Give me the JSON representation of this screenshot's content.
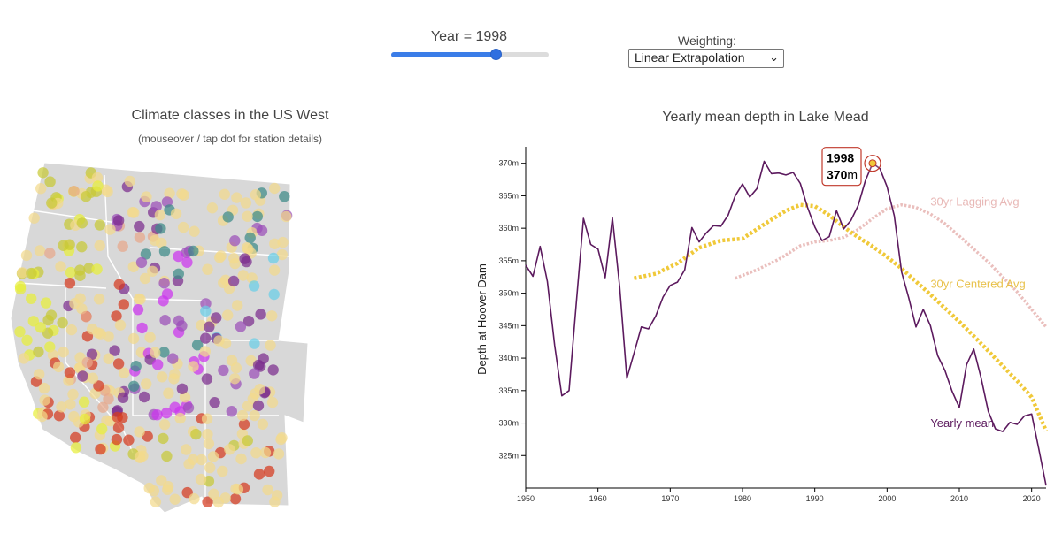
{
  "controls": {
    "year_label": "Year = 1998",
    "year_slider": {
      "min": 1950,
      "max": 2022,
      "value": 1998
    },
    "weighting_label": "Weighting:",
    "weighting_selected": "Linear Extrapolation",
    "chevron_icon": "chevron-down-icon"
  },
  "map": {
    "title": "Climate classes in the US West",
    "subtitle": "(mouseover / tap dot for station details)",
    "colors": {
      "land": "#d8d8d8",
      "border": "#ffffff",
      "classes": [
        "#c7c936",
        "#f3d98c",
        "#9b4fb8",
        "#7b2d8e",
        "#d63a1f",
        "#e8a88a",
        "#e8ee3a",
        "#cc33ee",
        "#3d8a88",
        "#6acfe8",
        "#f2c8c0"
      ]
    }
  },
  "chart_data": {
    "type": "line",
    "title": "Yearly mean depth in Lake Mead",
    "ylabel": "Depth at Hoover Dam",
    "xlabel": "",
    "xlim": [
      1950,
      2022
    ],
    "ylim": [
      320,
      372
    ],
    "x_ticks": [
      "1950",
      "1960",
      "1970",
      "1980",
      "1990",
      "2000",
      "2010",
      "2020"
    ],
    "y_ticks": [
      "325m",
      "330m",
      "335m",
      "340m",
      "345m",
      "350m",
      "355m",
      "360m",
      "365m",
      "370m"
    ],
    "grid": false,
    "series": [
      {
        "name": "Yearly mean",
        "color": "#5c1a5e",
        "x": [
          1950,
          1951,
          1952,
          1953,
          1954,
          1955,
          1956,
          1957,
          1958,
          1959,
          1960,
          1961,
          1962,
          1963,
          1964,
          1965,
          1966,
          1967,
          1968,
          1969,
          1970,
          1971,
          1972,
          1973,
          1974,
          1975,
          1976,
          1977,
          1978,
          1979,
          1980,
          1981,
          1982,
          1983,
          1984,
          1985,
          1986,
          1987,
          1988,
          1989,
          1990,
          1991,
          1992,
          1993,
          1994,
          1995,
          1996,
          1997,
          1998,
          1999,
          2000,
          2001,
          2002,
          2003,
          2004,
          2005,
          2006,
          2007,
          2008,
          2009,
          2010,
          2011,
          2012,
          2013,
          2014,
          2015,
          2016,
          2017,
          2018,
          2019,
          2020,
          2021,
          2022
        ],
        "values": [
          354.3,
          352.6,
          357.2,
          351.8,
          342.0,
          334.2,
          335.0,
          348.5,
          361.5,
          357.5,
          356.8,
          352.4,
          361.6,
          351.0,
          336.9,
          340.8,
          344.8,
          344.5,
          346.5,
          349.4,
          351.2,
          351.7,
          353.6,
          360.1,
          357.9,
          359.3,
          360.4,
          360.3,
          362.0,
          365.0,
          366.8,
          364.8,
          366.1,
          370.3,
          368.4,
          368.5,
          368.2,
          368.6,
          366.9,
          363.2,
          360.2,
          358.1,
          358.7,
          362.7,
          359.9,
          361.2,
          363.5,
          367.3,
          370.0,
          369.2,
          366.4,
          361.9,
          353.3,
          349.3,
          344.8,
          347.5,
          345.0,
          340.4,
          338.1,
          334.9,
          332.4,
          339.0,
          341.4,
          337.0,
          331.8,
          329.1,
          328.7,
          330.1,
          329.8,
          331.1,
          331.4,
          326.0,
          320.4
        ]
      },
      {
        "name": "30yr Centered Avg",
        "color": "#f0c93a",
        "x": [
          1965,
          1968,
          1971,
          1974,
          1977,
          1980,
          1983,
          1986,
          1988,
          1990,
          1992,
          1994,
          1996,
          1998,
          2000,
          2002,
          2004,
          2006,
          2008,
          2010,
          2012,
          2014,
          2016,
          2018,
          2020,
          2022
        ],
        "values": [
          352.3,
          353.0,
          354.6,
          357.0,
          358.1,
          358.4,
          360.6,
          362.7,
          363.6,
          363.4,
          362.0,
          360.2,
          358.6,
          357.2,
          355.6,
          353.8,
          351.8,
          349.8,
          347.7,
          345.6,
          343.4,
          341.1,
          338.8,
          336.5,
          334.0,
          328.8
        ]
      },
      {
        "name": "30yr Lagging Avg",
        "color": "#e8b8b6",
        "x": [
          1979,
          1982,
          1985,
          1988,
          1990,
          1992,
          1994,
          1996,
          1998,
          2000,
          2002,
          2004,
          2006,
          2008,
          2010,
          2012,
          2014,
          2016,
          2018,
          2020,
          2022
        ],
        "values": [
          352.3,
          353.6,
          355.2,
          357.3,
          357.9,
          358.1,
          358.6,
          359.8,
          361.5,
          363.0,
          363.6,
          363.2,
          362.2,
          360.7,
          358.8,
          356.8,
          354.8,
          352.5,
          350.2,
          347.5,
          344.8
        ]
      }
    ],
    "annotations": [
      {
        "year": "1998",
        "value": "370",
        "unit": "m"
      }
    ]
  }
}
